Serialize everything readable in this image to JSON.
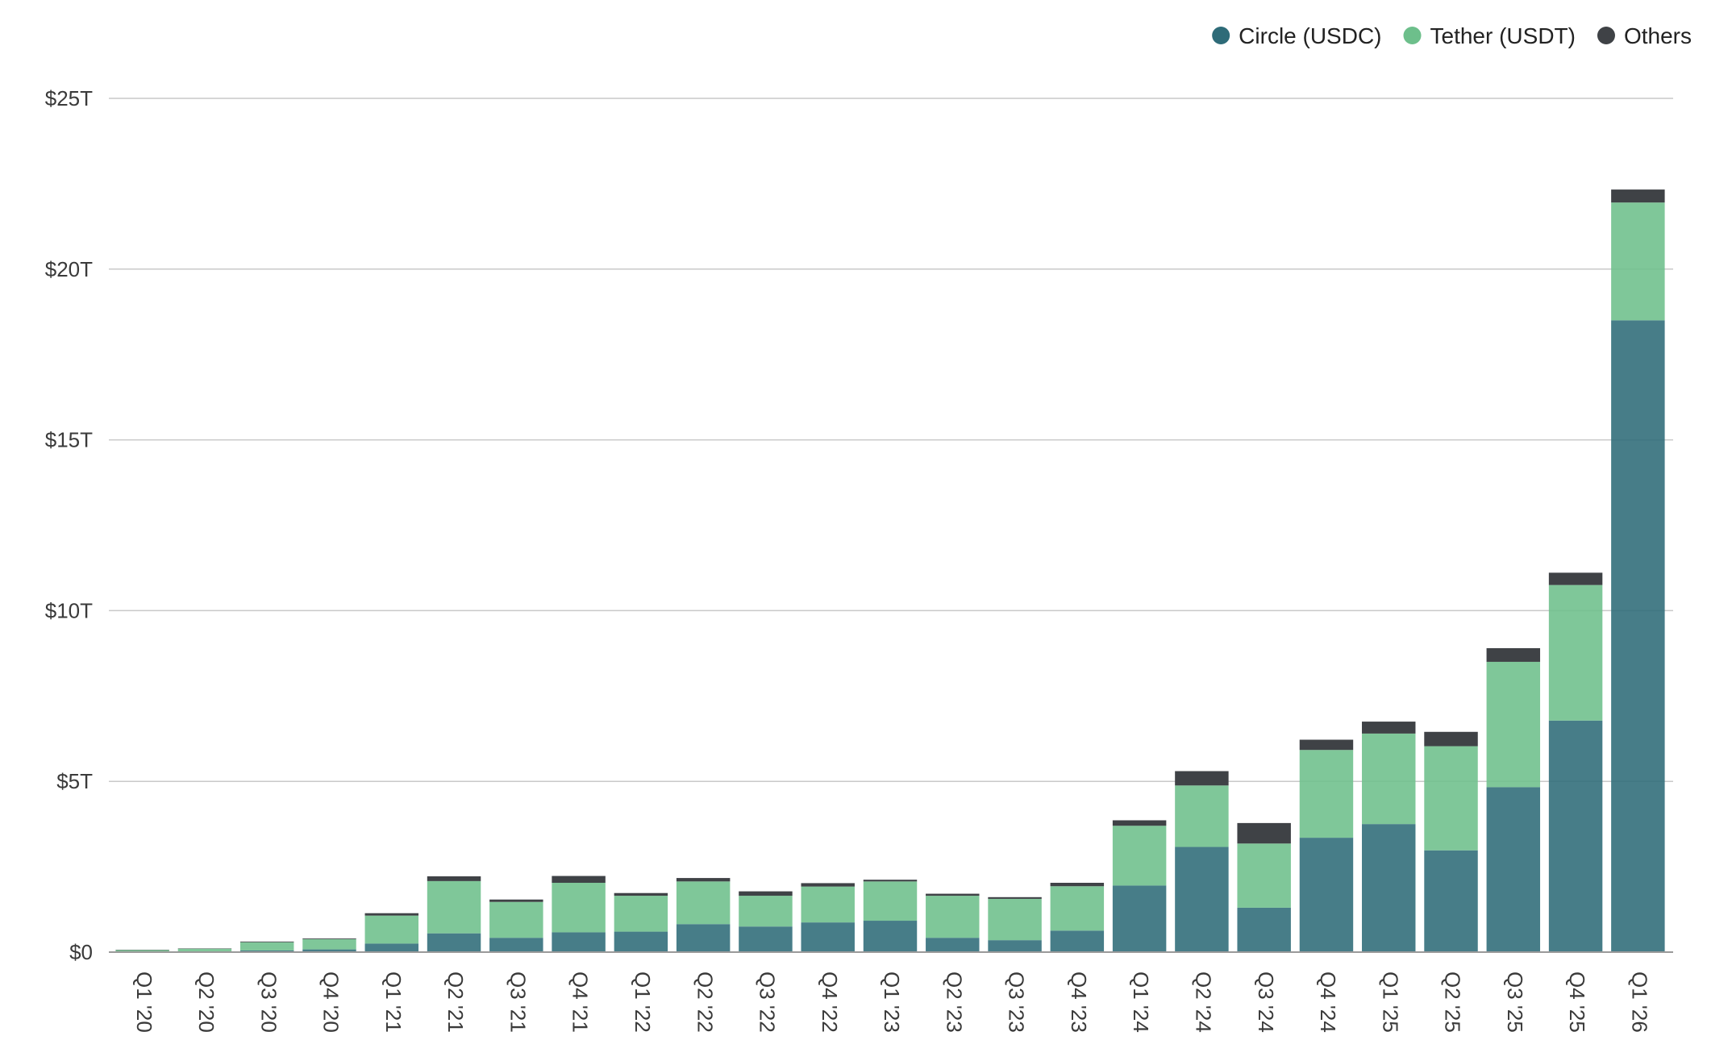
{
  "chart_data": {
    "type": "bar",
    "stacked": true,
    "title": "",
    "xlabel": "",
    "ylabel": "",
    "categories": [
      "Q1 '20",
      "Q2 '20",
      "Q3 '20",
      "Q4 '20",
      "Q1 '21",
      "Q2 '21",
      "Q3 '21",
      "Q4 '21",
      "Q1 '22",
      "Q2 '22",
      "Q3 '22",
      "Q4 '22",
      "Q1 '23",
      "Q2 '23",
      "Q3 '23",
      "Q4 '23",
      "Q1 '24",
      "Q2 '24",
      "Q3 '24",
      "Q4 '24",
      "Q1 '25",
      "Q2 '25",
      "Q3 '25",
      "Q4 '25",
      "Q1 '26"
    ],
    "series": [
      {
        "name": "Circle (USDC)",
        "color": "#2e6b78",
        "values": [
          0.01,
          0.02,
          0.05,
          0.08,
          0.25,
          0.55,
          0.42,
          0.58,
          0.6,
          0.82,
          0.75,
          0.87,
          0.92,
          0.42,
          0.35,
          0.63,
          1.95,
          3.08,
          1.3,
          3.35,
          3.75,
          2.98,
          4.83,
          6.78,
          18.5
        ]
      },
      {
        "name": "Tether (USDT)",
        "color": "#6dbf8b",
        "values": [
          0.05,
          0.08,
          0.24,
          0.3,
          0.82,
          1.53,
          1.05,
          1.45,
          1.05,
          1.25,
          0.9,
          1.05,
          1.15,
          1.23,
          1.21,
          1.3,
          1.75,
          1.8,
          1.88,
          2.57,
          2.65,
          3.05,
          3.67,
          3.97,
          3.45
        ]
      },
      {
        "name": "Others",
        "color": "#3f4246",
        "values": [
          0.01,
          0.01,
          0.02,
          0.02,
          0.07,
          0.14,
          0.07,
          0.2,
          0.08,
          0.1,
          0.13,
          0.1,
          0.05,
          0.06,
          0.05,
          0.1,
          0.16,
          0.42,
          0.6,
          0.3,
          0.35,
          0.42,
          0.4,
          0.36,
          0.38
        ]
      }
    ],
    "ylim": [
      0,
      25
    ],
    "yticks": [
      0,
      5,
      10,
      15,
      20,
      25
    ],
    "ytick_labels": [
      "$0",
      "$5T",
      "$10T",
      "$15T",
      "$20T",
      "$25T"
    ],
    "grid": true,
    "legend_position": "top-right"
  }
}
